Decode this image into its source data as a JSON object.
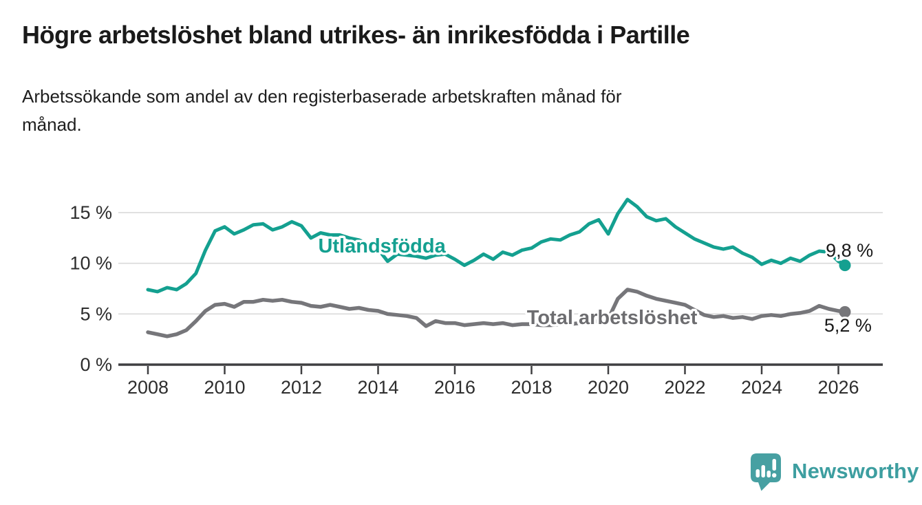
{
  "header": {
    "title": "Högre arbetslöshet bland utrikes- än inrikesfödda i Partille",
    "subtitle": "Arbetssökande som andel av den registerbaserade arbetskraften månad för månad.",
    "subtitle_lines": [
      "Arbetssökande som andel av den registerbaserade arbetskraften månad för",
      "månad."
    ]
  },
  "footer": {
    "brand": "Newsworthy",
    "logo_icon": "newsworthy-bar-chart-bubble"
  },
  "colors": {
    "accent_teal": "#14a090",
    "series_gray": "#76767a",
    "gray_label": "#6d6d70",
    "grid": "#dadada",
    "axis": "#3f3f41",
    "tick_text": "#2d2d2d",
    "value_text": "#191919",
    "logo_teal": "#47a0a2",
    "background": "#ffffff"
  },
  "chart_data": {
    "type": "line",
    "title": "Högre arbetslöshet bland utrikes- än inrikesfödda i Partille",
    "xlabel": "",
    "ylabel": "",
    "x_range": [
      2007.25,
      2027.15
    ],
    "ylim": [
      0,
      17
    ],
    "grid": "horizontal",
    "legend_position": "inline-labels",
    "x_ticks": [
      2008,
      2010,
      2012,
      2014,
      2016,
      2018,
      2020,
      2022,
      2024,
      2026
    ],
    "y_ticks": [
      {
        "value": 0,
        "label": "0 %"
      },
      {
        "value": 5,
        "label": "5 %"
      },
      {
        "value": 10,
        "label": "10 %"
      },
      {
        "value": 15,
        "label": "15 %"
      }
    ],
    "series": [
      {
        "name": "Total arbetslöshet",
        "color": "#76767a",
        "label_color": "#6d6d70",
        "stroke_width": 5.5,
        "end_value": 5.2,
        "end_label": "5,2 %",
        "label_anchor": {
          "x": 2020.1,
          "y": 4.0,
          "anchor": "middle"
        },
        "value_label_anchor": {
          "x": 2025.63,
          "y": 3.25,
          "anchor": "start"
        },
        "points": [
          [
            2008.0,
            3.2
          ],
          [
            2008.25,
            3.0
          ],
          [
            2008.5,
            2.8
          ],
          [
            2008.75,
            3.0
          ],
          [
            2009.0,
            3.4
          ],
          [
            2009.25,
            4.3
          ],
          [
            2009.5,
            5.3
          ],
          [
            2009.75,
            5.9
          ],
          [
            2010.0,
            6.0
          ],
          [
            2010.25,
            5.7
          ],
          [
            2010.5,
            6.2
          ],
          [
            2010.75,
            6.2
          ],
          [
            2011.0,
            6.4
          ],
          [
            2011.25,
            6.3
          ],
          [
            2011.5,
            6.4
          ],
          [
            2011.75,
            6.2
          ],
          [
            2012.0,
            6.1
          ],
          [
            2012.25,
            5.8
          ],
          [
            2012.5,
            5.7
          ],
          [
            2012.75,
            5.9
          ],
          [
            2013.0,
            5.7
          ],
          [
            2013.25,
            5.5
          ],
          [
            2013.5,
            5.6
          ],
          [
            2013.75,
            5.4
          ],
          [
            2014.0,
            5.3
          ],
          [
            2014.25,
            5.0
          ],
          [
            2014.5,
            4.9
          ],
          [
            2014.75,
            4.8
          ],
          [
            2015.0,
            4.6
          ],
          [
            2015.25,
            3.8
          ],
          [
            2015.5,
            4.3
          ],
          [
            2015.75,
            4.1
          ],
          [
            2016.0,
            4.1
          ],
          [
            2016.25,
            3.9
          ],
          [
            2016.5,
            4.0
          ],
          [
            2016.75,
            4.1
          ],
          [
            2017.0,
            4.0
          ],
          [
            2017.25,
            4.1
          ],
          [
            2017.5,
            3.9
          ],
          [
            2017.75,
            4.0
          ],
          [
            2018.0,
            4.0
          ],
          [
            2018.25,
            3.9
          ],
          [
            2018.5,
            3.9
          ],
          [
            2018.75,
            4.0
          ],
          [
            2019.0,
            4.0
          ],
          [
            2019.25,
            4.1
          ],
          [
            2019.5,
            4.2
          ],
          [
            2019.75,
            4.3
          ],
          [
            2020.0,
            4.5
          ],
          [
            2020.25,
            6.5
          ],
          [
            2020.5,
            7.4
          ],
          [
            2020.75,
            7.2
          ],
          [
            2021.0,
            6.8
          ],
          [
            2021.25,
            6.5
          ],
          [
            2021.5,
            6.3
          ],
          [
            2021.75,
            6.1
          ],
          [
            2022.0,
            5.9
          ],
          [
            2022.25,
            5.4
          ],
          [
            2022.5,
            4.9
          ],
          [
            2022.75,
            4.7
          ],
          [
            2023.0,
            4.8
          ],
          [
            2023.25,
            4.6
          ],
          [
            2023.5,
            4.7
          ],
          [
            2023.75,
            4.5
          ],
          [
            2024.0,
            4.8
          ],
          [
            2024.25,
            4.9
          ],
          [
            2024.5,
            4.8
          ],
          [
            2024.75,
            5.0
          ],
          [
            2025.0,
            5.1
          ],
          [
            2025.25,
            5.3
          ],
          [
            2025.5,
            5.8
          ],
          [
            2025.75,
            5.5
          ],
          [
            2026.0,
            5.3
          ],
          [
            2026.17,
            5.2
          ]
        ]
      },
      {
        "name": "Utlandsfödda",
        "color": "#14a090",
        "label_color": "#14a090",
        "stroke_width": 5,
        "end_value": 9.8,
        "end_label": "9,8 %",
        "label_anchor": {
          "x": 2014.1,
          "y": 11.05,
          "anchor": "middle"
        },
        "value_label_anchor": {
          "x": 2025.67,
          "y": 10.65,
          "anchor": "start"
        },
        "points": [
          [
            2008.0,
            7.4
          ],
          [
            2008.25,
            7.2
          ],
          [
            2008.5,
            7.6
          ],
          [
            2008.75,
            7.4
          ],
          [
            2009.0,
            8.0
          ],
          [
            2009.25,
            9.0
          ],
          [
            2009.5,
            11.3
          ],
          [
            2009.75,
            13.2
          ],
          [
            2010.0,
            13.6
          ],
          [
            2010.25,
            12.9
          ],
          [
            2010.5,
            13.3
          ],
          [
            2010.75,
            13.8
          ],
          [
            2011.0,
            13.9
          ],
          [
            2011.25,
            13.3
          ],
          [
            2011.5,
            13.6
          ],
          [
            2011.75,
            14.1
          ],
          [
            2012.0,
            13.7
          ],
          [
            2012.25,
            12.5
          ],
          [
            2012.5,
            13.0
          ],
          [
            2012.75,
            12.8
          ],
          [
            2013.0,
            12.8
          ],
          [
            2013.25,
            12.5
          ],
          [
            2013.5,
            12.3
          ],
          [
            2013.75,
            11.9
          ],
          [
            2014.0,
            11.4
          ],
          [
            2014.25,
            10.2
          ],
          [
            2014.5,
            10.9
          ],
          [
            2014.75,
            10.8
          ],
          [
            2015.0,
            10.7
          ],
          [
            2015.25,
            10.5
          ],
          [
            2015.5,
            10.8
          ],
          [
            2015.75,
            10.9
          ],
          [
            2016.0,
            10.4
          ],
          [
            2016.25,
            9.8
          ],
          [
            2016.5,
            10.3
          ],
          [
            2016.75,
            10.9
          ],
          [
            2017.0,
            10.4
          ],
          [
            2017.25,
            11.1
          ],
          [
            2017.5,
            10.8
          ],
          [
            2017.75,
            11.3
          ],
          [
            2018.0,
            11.5
          ],
          [
            2018.25,
            12.1
          ],
          [
            2018.5,
            12.4
          ],
          [
            2018.75,
            12.3
          ],
          [
            2019.0,
            12.8
          ],
          [
            2019.25,
            13.1
          ],
          [
            2019.5,
            13.9
          ],
          [
            2019.75,
            14.3
          ],
          [
            2020.0,
            12.9
          ],
          [
            2020.25,
            14.9
          ],
          [
            2020.5,
            16.3
          ],
          [
            2020.75,
            15.6
          ],
          [
            2021.0,
            14.6
          ],
          [
            2021.25,
            14.2
          ],
          [
            2021.5,
            14.4
          ],
          [
            2021.75,
            13.6
          ],
          [
            2022.0,
            13.0
          ],
          [
            2022.25,
            12.4
          ],
          [
            2022.5,
            12.0
          ],
          [
            2022.75,
            11.6
          ],
          [
            2023.0,
            11.4
          ],
          [
            2023.25,
            11.6
          ],
          [
            2023.5,
            11.0
          ],
          [
            2023.75,
            10.6
          ],
          [
            2024.0,
            9.9
          ],
          [
            2024.25,
            10.3
          ],
          [
            2024.5,
            10.0
          ],
          [
            2024.75,
            10.5
          ],
          [
            2025.0,
            10.2
          ],
          [
            2025.25,
            10.8
          ],
          [
            2025.5,
            11.2
          ],
          [
            2025.75,
            11.1
          ],
          [
            2026.0,
            10.2
          ],
          [
            2026.17,
            9.8
          ]
        ]
      }
    ]
  }
}
